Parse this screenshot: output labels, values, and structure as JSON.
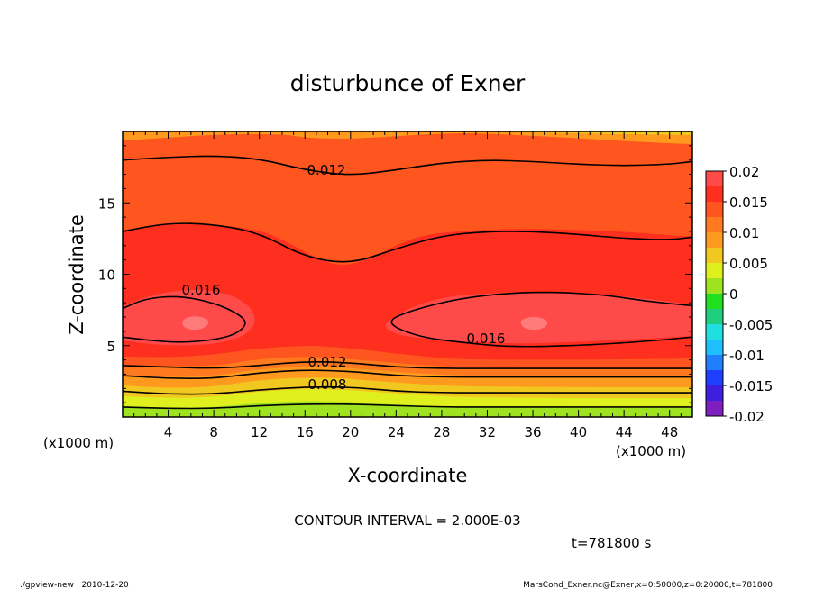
{
  "chart_data": {
    "type": "heatmap",
    "title": "disturbunce of Exner",
    "xlabel": "X-coordinate",
    "ylabel": "Z-coordinate",
    "x_unit_left": "(x1000 m)",
    "x_unit_right": "(x1000 m)",
    "xlim": [
      0,
      50
    ],
    "ylim": [
      0,
      20
    ],
    "x_ticks": [
      "4",
      "8",
      "12",
      "16",
      "20",
      "24",
      "28",
      "32",
      "36",
      "40",
      "44",
      "48"
    ],
    "x_tick_values": [
      4,
      8,
      12,
      16,
      20,
      24,
      28,
      32,
      36,
      40,
      44,
      48
    ],
    "y_ticks": [
      "5",
      "10",
      "15"
    ],
    "y_tick_values": [
      5,
      10,
      15
    ],
    "colorbar": {
      "levels": [
        -0.02,
        -0.0175,
        -0.015,
        -0.0125,
        -0.01,
        -0.0075,
        -0.005,
        -0.0025,
        0,
        0.0025,
        0.005,
        0.0075,
        0.01,
        0.0125,
        0.015,
        0.0175,
        0.02
      ],
      "labels": [
        "-0.02",
        "-0.015",
        "-0.01",
        "-0.005",
        "0",
        "0.005",
        "0.01",
        "0.015",
        "0.02"
      ],
      "label_values": [
        -0.02,
        -0.015,
        -0.01,
        -0.005,
        0,
        0.005,
        0.01,
        0.015,
        0.02
      ],
      "colors": [
        "#7f1fbf",
        "#3f1fdf",
        "#1f3fff",
        "#1f7fff",
        "#1fbfff",
        "#1fdfdf",
        "#1fcf7f",
        "#1fdf1f",
        "#9fe21f",
        "#e0f01f",
        "#f0c81f",
        "#ff9a1f",
        "#ff7a1f",
        "#ff551f",
        "#ff2f1f",
        "#ff4a4a",
        "#ff7a7a"
      ]
    },
    "contour_lines": [
      {
        "label": "0.012",
        "x": [
          0,
          4,
          8,
          12,
          16,
          20,
          24,
          28,
          32,
          36,
          40,
          44,
          48,
          50
        ],
        "z": [
          18.0,
          18.2,
          18.3,
          18.1,
          17.3,
          16.9,
          17.3,
          17.8,
          18.0,
          17.9,
          17.7,
          17.6,
          17.7,
          17.9
        ]
      },
      {
        "label": "",
        "x": [
          0,
          4,
          8,
          12,
          16,
          20,
          24,
          28,
          32,
          36,
          40,
          44,
          48,
          50
        ],
        "z": [
          13.0,
          13.6,
          13.5,
          12.9,
          11.2,
          10.7,
          11.8,
          12.7,
          13.0,
          13.0,
          12.8,
          12.5,
          12.4,
          12.6
        ]
      },
      {
        "label": "0.016",
        "x": [
          0,
          2,
          5,
          8,
          10,
          11,
          10,
          8,
          5,
          2,
          0
        ],
        "z": [
          7.6,
          8.3,
          8.5,
          8.0,
          7.3,
          6.6,
          5.8,
          5.4,
          5.2,
          5.4,
          5.6
        ]
      },
      {
        "label": "0.016",
        "x": [
          50,
          46,
          40,
          34,
          30,
          26,
          23,
          25,
          30,
          36,
          42,
          46,
          50
        ],
        "z": [
          5.6,
          5.3,
          5.0,
          4.9,
          5.2,
          5.6,
          6.6,
          7.4,
          8.4,
          8.8,
          8.6,
          8.1,
          7.8
        ]
      },
      {
        "label": "0.012",
        "x": [
          0,
          4,
          8,
          12,
          16,
          20,
          24,
          28,
          32,
          36,
          40,
          44,
          48,
          50
        ],
        "z": [
          3.6,
          3.5,
          3.4,
          3.6,
          3.9,
          3.8,
          3.5,
          3.4,
          3.4,
          3.4,
          3.4,
          3.4,
          3.4,
          3.4
        ]
      },
      {
        "label": "",
        "x": [
          0,
          4,
          8,
          12,
          16,
          20,
          24,
          28,
          32,
          36,
          40,
          44,
          48,
          50
        ],
        "z": [
          2.9,
          2.7,
          2.7,
          3.1,
          3.3,
          3.2,
          2.9,
          2.8,
          2.8,
          2.8,
          2.8,
          2.8,
          2.8,
          2.8
        ]
      },
      {
        "label": "0.008",
        "x": [
          0,
          4,
          8,
          12,
          16,
          20,
          24,
          28,
          32,
          36,
          40,
          44,
          48,
          50
        ],
        "z": [
          1.8,
          1.6,
          1.6,
          1.9,
          2.1,
          2.1,
          1.8,
          1.7,
          1.7,
          1.7,
          1.7,
          1.7,
          1.7,
          1.7
        ]
      },
      {
        "label": "",
        "x": [
          0,
          4,
          8,
          12,
          16,
          20,
          24,
          28,
          32,
          36,
          40,
          44,
          48,
          50
        ],
        "z": [
          0.7,
          0.6,
          0.6,
          0.8,
          0.9,
          0.9,
          0.8,
          0.7,
          0.7,
          0.7,
          0.7,
          0.7,
          0.7,
          0.7
        ]
      }
    ],
    "contour_interval_text": "CONTOUR INTERVAL = 2.000E-03",
    "time_text": "t=781800 s"
  },
  "footer": {
    "left": "./gpview-new   2010-12-20",
    "right": "MarsCond_Exner.nc@Exner,x=0:50000,z=0:20000,t=781800"
  },
  "colors": {
    "axis": "#000000",
    "contour_line": "#000000"
  }
}
